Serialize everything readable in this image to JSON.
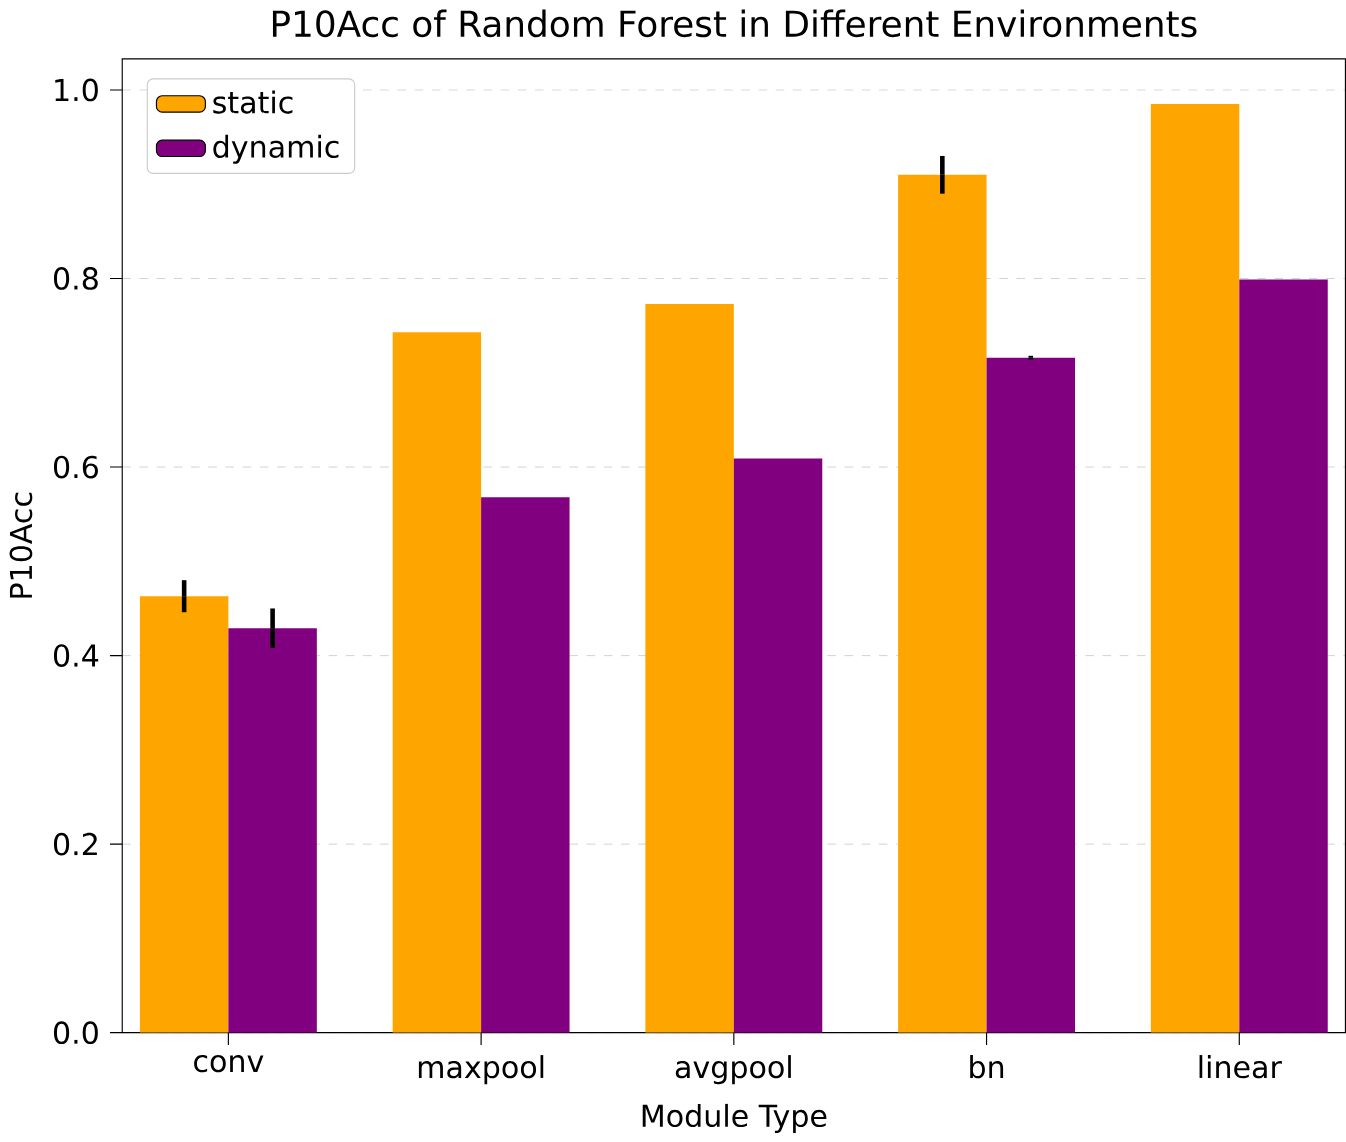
{
  "chart_data": {
    "type": "bar",
    "title": "P10Acc of Random Forest in Different Environments",
    "xlabel": "Module Type",
    "ylabel": "P10Acc",
    "categories": [
      "conv",
      "maxpool",
      "avgpool",
      "bn",
      "linear"
    ],
    "series": [
      {
        "name": "static",
        "color": "#ffa500",
        "values": [
          0.463,
          0.743,
          0.773,
          0.91,
          0.985
        ],
        "errors": [
          0.017,
          null,
          null,
          0.02,
          null
        ]
      },
      {
        "name": "dynamic",
        "color": "#800080",
        "values": [
          0.429,
          0.568,
          0.609,
          0.716,
          0.799
        ],
        "errors": [
          0.021,
          null,
          null,
          0.002,
          null
        ]
      }
    ],
    "ylim": [
      0,
      1.033
    ],
    "yticks": [
      {
        "value": 0,
        "label": "0.0"
      },
      0.2,
      0.4,
      0.6,
      0.8,
      {
        "value": 1,
        "label": "1.0"
      }
    ],
    "grid": "y",
    "legend": "top left"
  }
}
